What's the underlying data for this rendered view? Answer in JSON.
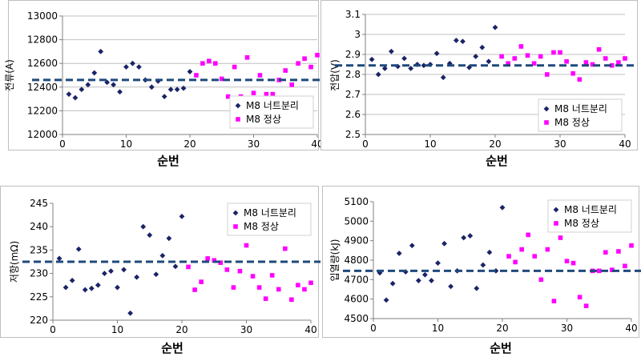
{
  "colors": {
    "before": "#1a2466",
    "after": "#ff00ff",
    "meanline": "#1f497d",
    "grid": "#c0c0c0",
    "axis": "#808080"
  },
  "chart_data": [
    {
      "type": "scatter",
      "ylabel": "전류(A)",
      "xlabel": "순번",
      "xlim": [
        0,
        40
      ],
      "ylim": [
        12000,
        13000
      ],
      "xticks": [
        0,
        10,
        20,
        30,
        40
      ],
      "yticks": [
        12000,
        12200,
        12400,
        12600,
        12800,
        13000
      ],
      "grid": true,
      "mean": 12460,
      "legend_position": "bottom-right",
      "series": [
        {
          "name": "M8 너트분리",
          "marker": "diamond",
          "x": [
            1,
            2,
            3,
            4,
            5,
            6,
            7,
            8,
            9,
            10,
            11,
            12,
            13,
            14,
            15,
            16,
            17,
            18,
            19,
            20
          ],
          "y": [
            12340,
            12310,
            12380,
            12420,
            12520,
            12700,
            12440,
            12420,
            12360,
            12570,
            12600,
            12570,
            12460,
            12400,
            12450,
            12320,
            12380,
            12380,
            12390,
            12530
          ]
        },
        {
          "name": "M8 정상",
          "marker": "square",
          "x": [
            21,
            22,
            23,
            24,
            25,
            26,
            27,
            28,
            29,
            30,
            31,
            32,
            33,
            34,
            35,
            36,
            37,
            38,
            39,
            40
          ],
          "y": [
            12500,
            12600,
            12620,
            12600,
            12470,
            12320,
            12570,
            12320,
            12650,
            12350,
            12500,
            12340,
            12340,
            12460,
            12540,
            12420,
            12600,
            12640,
            12570,
            12670
          ]
        }
      ]
    },
    {
      "type": "scatter",
      "ylabel": "전압(V)",
      "xlabel": "순번",
      "xlim": [
        0,
        40
      ],
      "ylim": [
        2.5,
        3.1
      ],
      "xticks": [
        0,
        10,
        20,
        30,
        40
      ],
      "yticks": [
        2.5,
        2.6,
        2.7,
        2.8,
        2.9,
        3.0,
        3.1
      ],
      "ytick_labels": [
        "2.5",
        "2.6",
        "2.7",
        "2.8",
        "2.9",
        "3",
        "3.1"
      ],
      "grid": true,
      "mean": 2.845,
      "legend_position": "bottom-right",
      "series": [
        {
          "name": "M8 너트분리",
          "marker": "diamond",
          "x": [
            1,
            2,
            3,
            4,
            5,
            6,
            7,
            8,
            9,
            10,
            11,
            12,
            13,
            14,
            15,
            16,
            17,
            18,
            19,
            20
          ],
          "y": [
            2.875,
            2.8,
            2.83,
            2.915,
            2.84,
            2.88,
            2.83,
            2.85,
            2.845,
            2.85,
            2.905,
            2.785,
            2.855,
            2.97,
            2.965,
            2.835,
            2.89,
            2.935,
            2.865,
            3.035
          ]
        },
        {
          "name": "M8 정상",
          "marker": "square",
          "x": [
            21,
            22,
            23,
            24,
            25,
            26,
            27,
            28,
            29,
            30,
            31,
            32,
            33,
            34,
            35,
            36,
            37,
            38,
            39,
            40
          ],
          "y": [
            2.89,
            2.855,
            2.88,
            2.94,
            2.895,
            2.855,
            2.89,
            2.8,
            2.91,
            2.91,
            2.865,
            2.805,
            2.775,
            2.86,
            2.85,
            2.925,
            2.88,
            2.845,
            2.86,
            2.88
          ]
        }
      ]
    },
    {
      "type": "scatter",
      "ylabel": "저항(mΩ)",
      "xlabel": "순번",
      "xlim": [
        0,
        40
      ],
      "ylim": [
        220,
        245
      ],
      "xticks": [
        0,
        10,
        20,
        30,
        40
      ],
      "yticks": [
        220,
        225,
        230,
        235,
        240,
        245
      ],
      "grid": false,
      "mean": 232.5,
      "legend_position": "top-right",
      "series": [
        {
          "name": "M8 너트분리",
          "marker": "diamond",
          "x": [
            1,
            2,
            3,
            4,
            5,
            6,
            7,
            8,
            9,
            10,
            11,
            12,
            13,
            14,
            15,
            16,
            17,
            18,
            19,
            20
          ],
          "y": [
            233.2,
            227.0,
            228.5,
            235.2,
            226.5,
            226.8,
            227.5,
            230.0,
            230.5,
            227.0,
            230.8,
            221.5,
            229.2,
            240.0,
            238.2,
            229.8,
            233.8,
            237.5,
            231.5,
            242.2
          ]
        },
        {
          "name": "M8 정상",
          "marker": "square",
          "x": [
            21,
            22,
            23,
            24,
            25,
            26,
            27,
            28,
            29,
            30,
            31,
            32,
            33,
            34,
            35,
            36,
            37,
            38,
            39,
            40
          ],
          "y": [
            231.4,
            226.5,
            228.2,
            233.2,
            232.8,
            232.3,
            230.8,
            227.0,
            230.5,
            236.0,
            229.4,
            227.0,
            224.6,
            229.6,
            226.6,
            235.3,
            224.4,
            227.5,
            226.6,
            228.0
          ]
        }
      ]
    },
    {
      "type": "scatter",
      "ylabel": "입열량(kJ)",
      "xlabel": "순번",
      "xlim": [
        0,
        40
      ],
      "ylim": [
        4500,
        5100
      ],
      "xticks": [
        0,
        10,
        20,
        30,
        40
      ],
      "yticks": [
        4500,
        4600,
        4700,
        4800,
        4900,
        5000,
        5100
      ],
      "grid": false,
      "mean": 4745,
      "legend_position": "top-right",
      "series": [
        {
          "name": "M8 너트분리",
          "marker": "diamond",
          "x": [
            1,
            2,
            3,
            4,
            5,
            6,
            7,
            8,
            9,
            10,
            11,
            12,
            13,
            14,
            15,
            16,
            17,
            18,
            19,
            20
          ],
          "y": [
            4735,
            4595,
            4680,
            4835,
            4740,
            4875,
            4695,
            4725,
            4695,
            4785,
            4885,
            4665,
            4745,
            4915,
            4925,
            4655,
            4775,
            4840,
            4745,
            5070
          ]
        },
        {
          "name": "M8 정상",
          "marker": "square",
          "x": [
            21,
            22,
            23,
            24,
            25,
            26,
            27,
            28,
            29,
            30,
            31,
            32,
            33,
            34,
            35,
            36,
            37,
            38,
            39,
            40
          ],
          "y": [
            4820,
            4790,
            4855,
            4930,
            4820,
            4700,
            4855,
            4590,
            4915,
            4795,
            4785,
            4610,
            4565,
            4745,
            4745,
            4840,
            4750,
            4845,
            4770,
            4875
          ]
        }
      ]
    }
  ]
}
